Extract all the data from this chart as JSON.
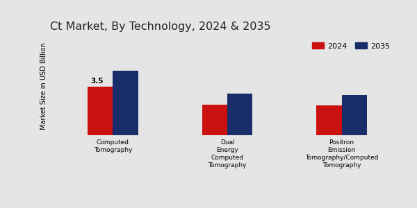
{
  "title": "Ct Market, By Technology, 2024 & 2035",
  "ylabel": "Market Size in USD Billion",
  "categories": [
    "Computed\nTomography",
    "Dual\nEnergy\nComputed\nTomography",
    "Positron\nEmission\nTomography/Computed\nTomography"
  ],
  "values_2024": [
    3.5,
    2.2,
    2.15
  ],
  "values_2035": [
    4.6,
    3.0,
    2.9
  ],
  "bar_color_2024": "#cc1111",
  "bar_color_2035": "#1a2d6b",
  "annotation_label": "3.5",
  "annotation_index": 0,
  "legend_labels": [
    "2024",
    "2035"
  ],
  "background_color": "#e5e5e5",
  "bar_width": 0.22,
  "ylim": [
    0,
    7
  ],
  "title_fontsize": 11.5,
  "label_fontsize": 7,
  "tick_fontsize": 6.5,
  "legend_fontsize": 8,
  "annotation_fontsize": 7.5
}
